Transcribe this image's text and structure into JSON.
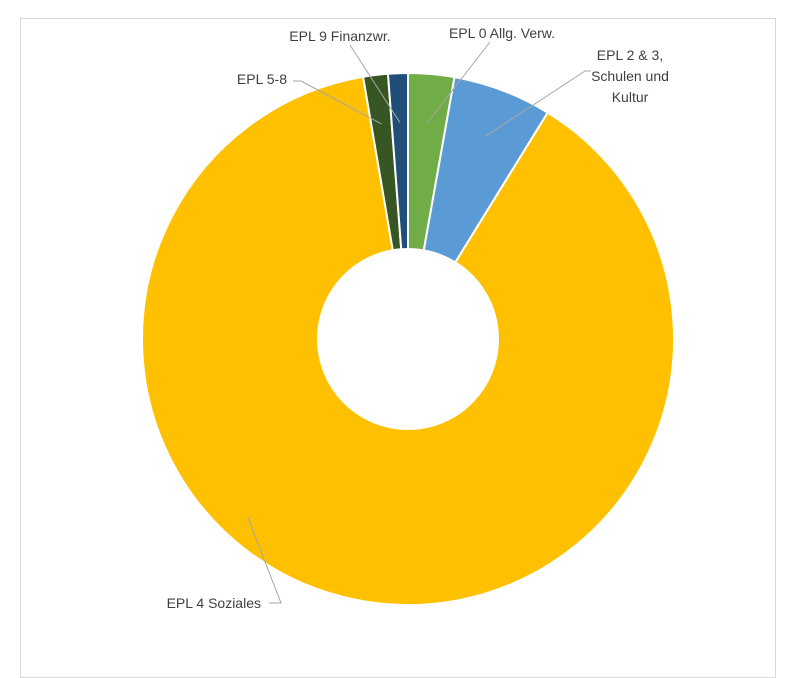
{
  "chart_data": {
    "type": "pie",
    "variant": "doughnut",
    "labels": [
      "EPL 0 Allg. Verw.",
      "EPL 2 & 3, Schulen und Kultur",
      "EPL 4 Soziales",
      "EPL 5-8",
      "EPL 9 Finanzwr."
    ],
    "values": [
      2.8,
      6.0,
      88.5,
      1.5,
      1.2
    ],
    "colors": [
      "#70ad47",
      "#5b9bd5",
      "#ffc000",
      "#375623",
      "#1f4e79"
    ],
    "title": "",
    "legend": "none",
    "data_labels": "category names with leader lines"
  }
}
